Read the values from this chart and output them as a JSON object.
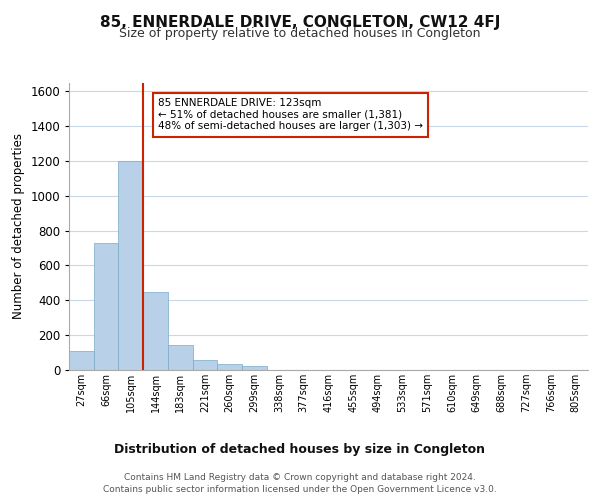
{
  "title": "85, ENNERDALE DRIVE, CONGLETON, CW12 4FJ",
  "subtitle": "Size of property relative to detached houses in Congleton",
  "xlabel": "Distribution of detached houses by size in Congleton",
  "ylabel": "Number of detached properties",
  "bar_labels": [
    "27sqm",
    "66sqm",
    "105sqm",
    "144sqm",
    "183sqm",
    "221sqm",
    "260sqm",
    "299sqm",
    "338sqm",
    "377sqm",
    "416sqm",
    "455sqm",
    "494sqm",
    "533sqm",
    "571sqm",
    "610sqm",
    "649sqm",
    "688sqm",
    "727sqm",
    "766sqm",
    "805sqm"
  ],
  "bar_heights": [
    110,
    730,
    1200,
    450,
    145,
    60,
    35,
    25,
    0,
    0,
    0,
    0,
    0,
    0,
    0,
    0,
    0,
    0,
    0,
    0,
    0
  ],
  "bar_color": "#b8d0e8",
  "bar_edge_color": "#7aaac8",
  "highlight_bar_index": 2,
  "highlight_color": "#cc2200",
  "ylim": [
    0,
    1650
  ],
  "yticks": [
    0,
    200,
    400,
    600,
    800,
    1000,
    1200,
    1400,
    1600
  ],
  "annotation_title": "85 ENNERDALE DRIVE: 123sqm",
  "annotation_line1": "← 51% of detached houses are smaller (1,381)",
  "annotation_line2": "48% of semi-detached houses are larger (1,303) →",
  "annotation_box_color": "#ffffff",
  "annotation_box_edge": "#cc2200",
  "footer_line1": "Contains HM Land Registry data © Crown copyright and database right 2024.",
  "footer_line2": "Contains public sector information licensed under the Open Government Licence v3.0.",
  "background_color": "#ffffff",
  "grid_color": "#c8d8e8"
}
